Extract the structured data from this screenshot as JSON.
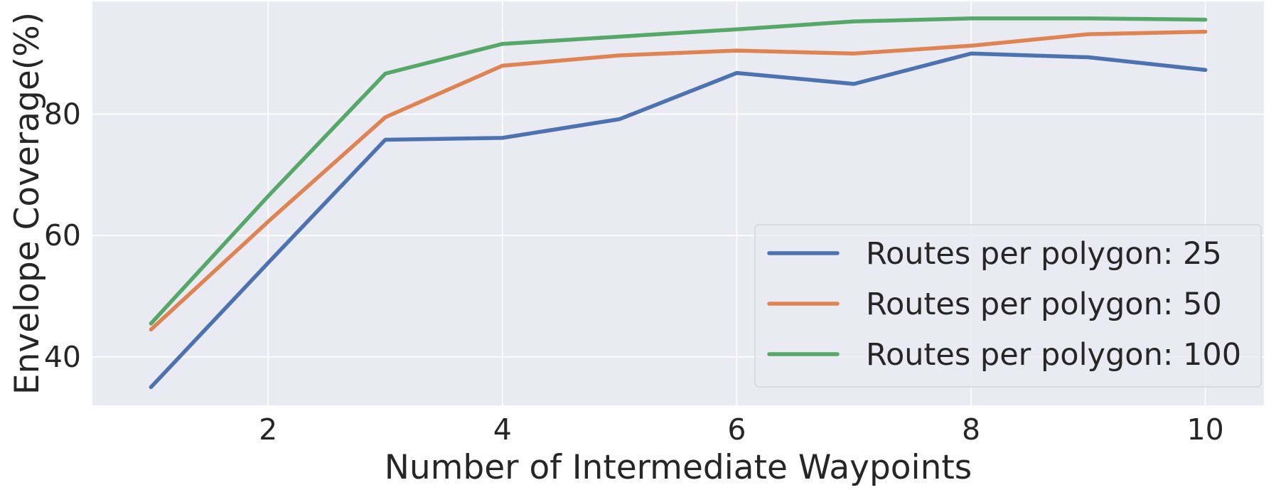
{
  "chart_data": {
    "type": "line",
    "title": "",
    "xlabel": "Number of Intermediate Waypoints",
    "ylabel": "Envelope Coverage(%)",
    "x": [
      1,
      2,
      3,
      4,
      5,
      6,
      7,
      8,
      9,
      10
    ],
    "xlim": [
      0.5,
      10.5
    ],
    "ylim": [
      32,
      98.6
    ],
    "xticks": [
      2,
      4,
      6,
      8,
      10
    ],
    "yticks": [
      40,
      60,
      80
    ],
    "grid": true,
    "background": "#eaeaf2",
    "legend_position": "lower-right",
    "series": [
      {
        "name": "Routes per polygon: 25",
        "color": "#4c72b0",
        "values": [
          35.0,
          55.5,
          75.8,
          76.1,
          79.2,
          86.8,
          85.0,
          90.0,
          89.4,
          87.3
        ]
      },
      {
        "name": "Routes per polygon: 50",
        "color": "#dd8452",
        "values": [
          44.5,
          62.3,
          79.5,
          88.0,
          89.7,
          90.5,
          90.0,
          91.3,
          93.2,
          93.6
        ]
      },
      {
        "name": "Routes per polygon: 100",
        "color": "#55a868",
        "values": [
          45.5,
          66.5,
          86.7,
          91.6,
          92.8,
          94.0,
          95.3,
          95.8,
          95.8,
          95.6
        ]
      }
    ]
  }
}
